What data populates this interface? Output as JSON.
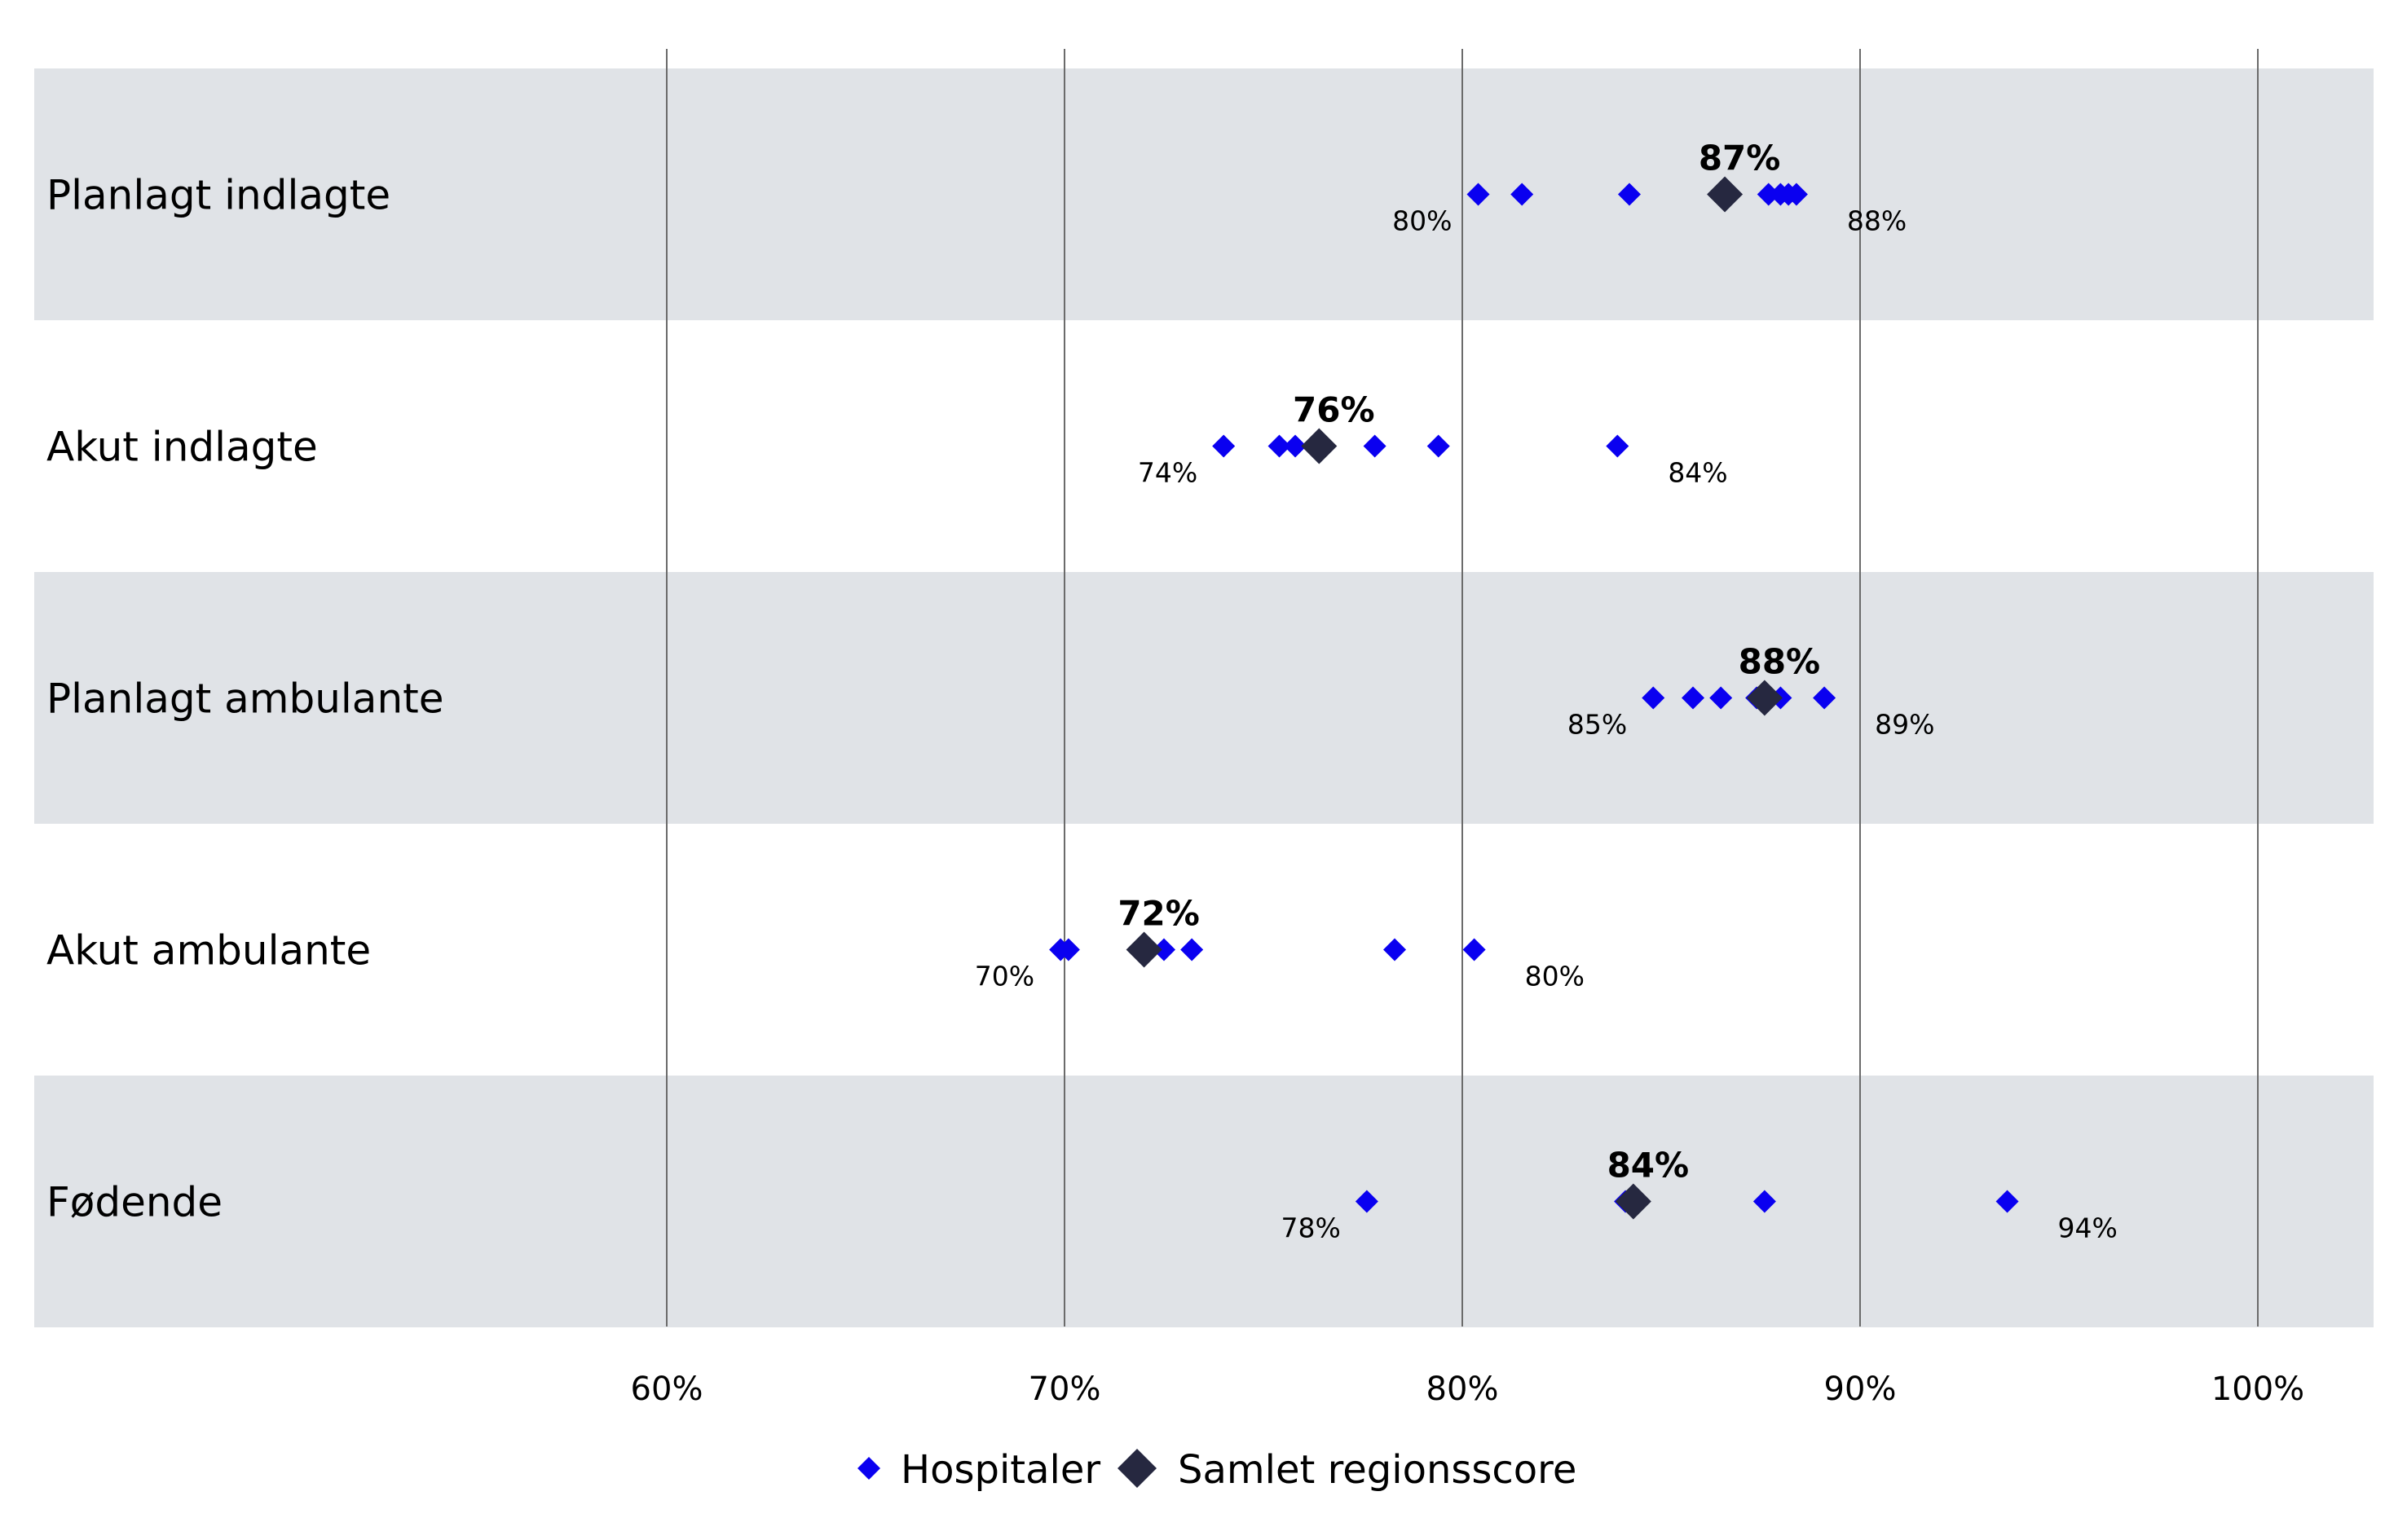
{
  "chart_data": {
    "type": "scatter",
    "title": "",
    "xlabel": "",
    "ylabel": "",
    "xlim": [
      0.44,
      1.03
    ],
    "ticks": [
      {
        "value": 0.6,
        "label": "60%"
      },
      {
        "value": 0.7,
        "label": "70%"
      },
      {
        "value": 0.8,
        "label": "80%"
      },
      {
        "value": 0.9,
        "label": "90%"
      },
      {
        "value": 1.0,
        "label": "100%"
      }
    ],
    "grid": true,
    "legend_position": "bottom-center",
    "colors": {
      "hospital": "#0a00f0",
      "region": "#262840",
      "band": "#e0e3e7",
      "gridline": "#6b6b6b"
    },
    "legend": {
      "hospital_label": "Hospitaler",
      "region_label": "Samlet regionsscore"
    },
    "categories": [
      {
        "name": "Planlagt indlagte",
        "shaded": true,
        "hospitals": [
          0.804,
          0.815,
          0.842,
          0.877,
          0.88,
          0.882,
          0.884
        ],
        "region": 0.866,
        "region_label": "87%",
        "min_label": "80%",
        "max_label": "88%"
      },
      {
        "name": "Akut indlagte",
        "shaded": false,
        "hospitals": [
          0.74,
          0.754,
          0.758,
          0.778,
          0.794,
          0.839
        ],
        "region": 0.764,
        "region_label": "76%",
        "min_label": "74%",
        "max_label": "84%"
      },
      {
        "name": "Planlagt ambulante",
        "shaded": true,
        "hospitals": [
          0.848,
          0.858,
          0.865,
          0.874,
          0.88,
          0.891
        ],
        "region": 0.876,
        "region_label": "88%",
        "min_label": "85%",
        "max_label": "89%"
      },
      {
        "name": "Akut ambulante",
        "shaded": false,
        "hospitals": [
          0.699,
          0.701,
          0.725,
          0.732,
          0.783,
          0.803
        ],
        "region": 0.72,
        "region_label": "72%",
        "min_label": "70%",
        "max_label": "80%"
      },
      {
        "name": "Fødende",
        "shaded": true,
        "hospitals": [
          0.776,
          0.841,
          0.876,
          0.937
        ],
        "region": 0.843,
        "region_label": "84%",
        "min_label": "78%",
        "max_label": "94%"
      }
    ]
  }
}
